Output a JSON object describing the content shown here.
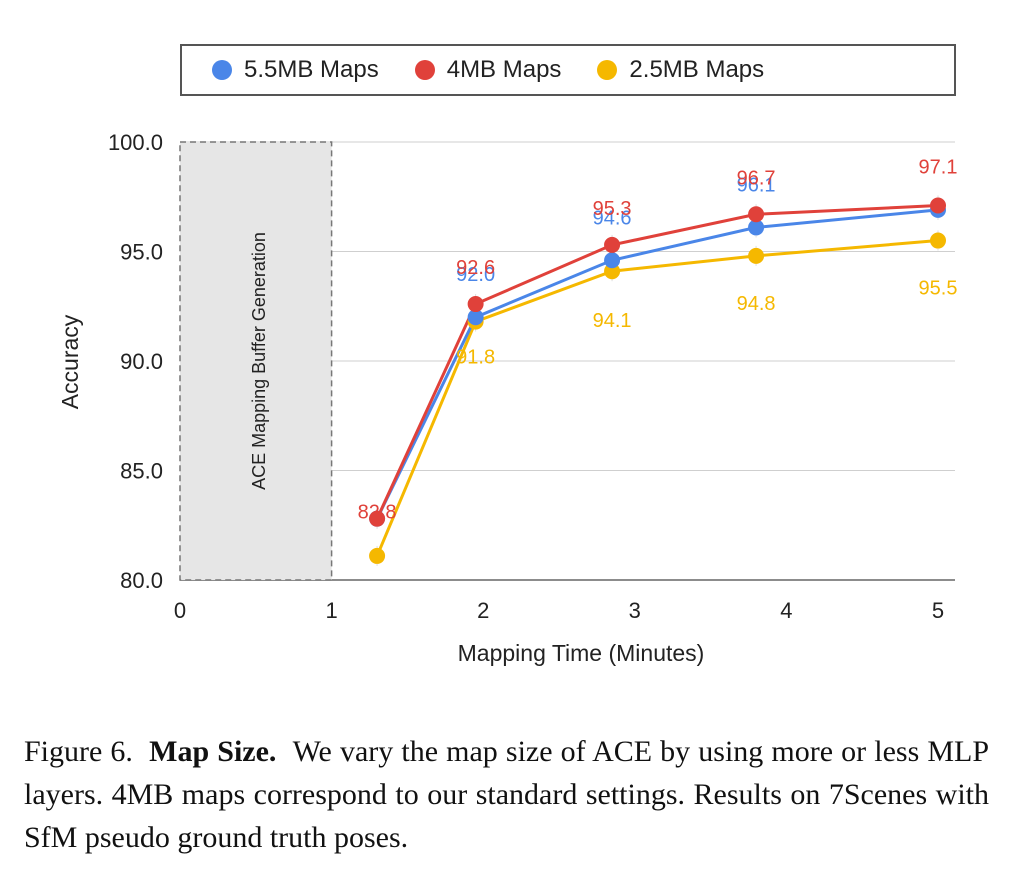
{
  "chart_data": {
    "type": "line",
    "xlabel": "Mapping Time (Minutes)",
    "ylabel": "Accuracy",
    "xlim": [
      0,
      5
    ],
    "ylim": [
      80,
      100
    ],
    "x_ticks": [
      "0",
      "1",
      "2",
      "3",
      "4",
      "5"
    ],
    "y_ticks": [
      "80.0",
      "85.0",
      "90.0",
      "95.0",
      "100.0"
    ],
    "grid": "horizontal",
    "legend_position": "top",
    "buffer_region": {
      "x_range": [
        0,
        1
      ],
      "label": "ACE Mapping Buffer Generation"
    },
    "series": [
      {
        "name": "5.5MB Maps",
        "color": "#4A86E8",
        "x": [
          1.3,
          1.95,
          2.85,
          3.8,
          5.0
        ],
        "values": [
          82.8,
          92.0,
          94.6,
          96.1,
          96.9
        ],
        "labels": [
          "",
          "92.0",
          "94.6",
          "96.1",
          ""
        ]
      },
      {
        "name": "4MB Maps",
        "color": "#E0413A",
        "x": [
          1.3,
          1.95,
          2.85,
          3.8,
          5.0
        ],
        "values": [
          82.8,
          92.6,
          95.3,
          96.7,
          97.1
        ],
        "labels": [
          "82.8",
          "92.6",
          "95.3",
          "96.7",
          "97.1"
        ]
      },
      {
        "name": "2.5MB Maps",
        "color": "#F5B800",
        "x": [
          1.3,
          1.95,
          2.85,
          3.8,
          5.0
        ],
        "values": [
          81.1,
          91.8,
          94.1,
          94.8,
          95.5
        ],
        "labels": [
          "",
          "91.8",
          "94.1",
          "94.8",
          "95.5"
        ]
      }
    ]
  },
  "caption": {
    "prefix": "Figure 6.",
    "title": "Map Size.",
    "body": "We vary the map size of ACE by using more or less MLP layers. 4MB maps correspond to our standard settings. Results on 7Scenes with SfM pseudo ground truth poses."
  }
}
